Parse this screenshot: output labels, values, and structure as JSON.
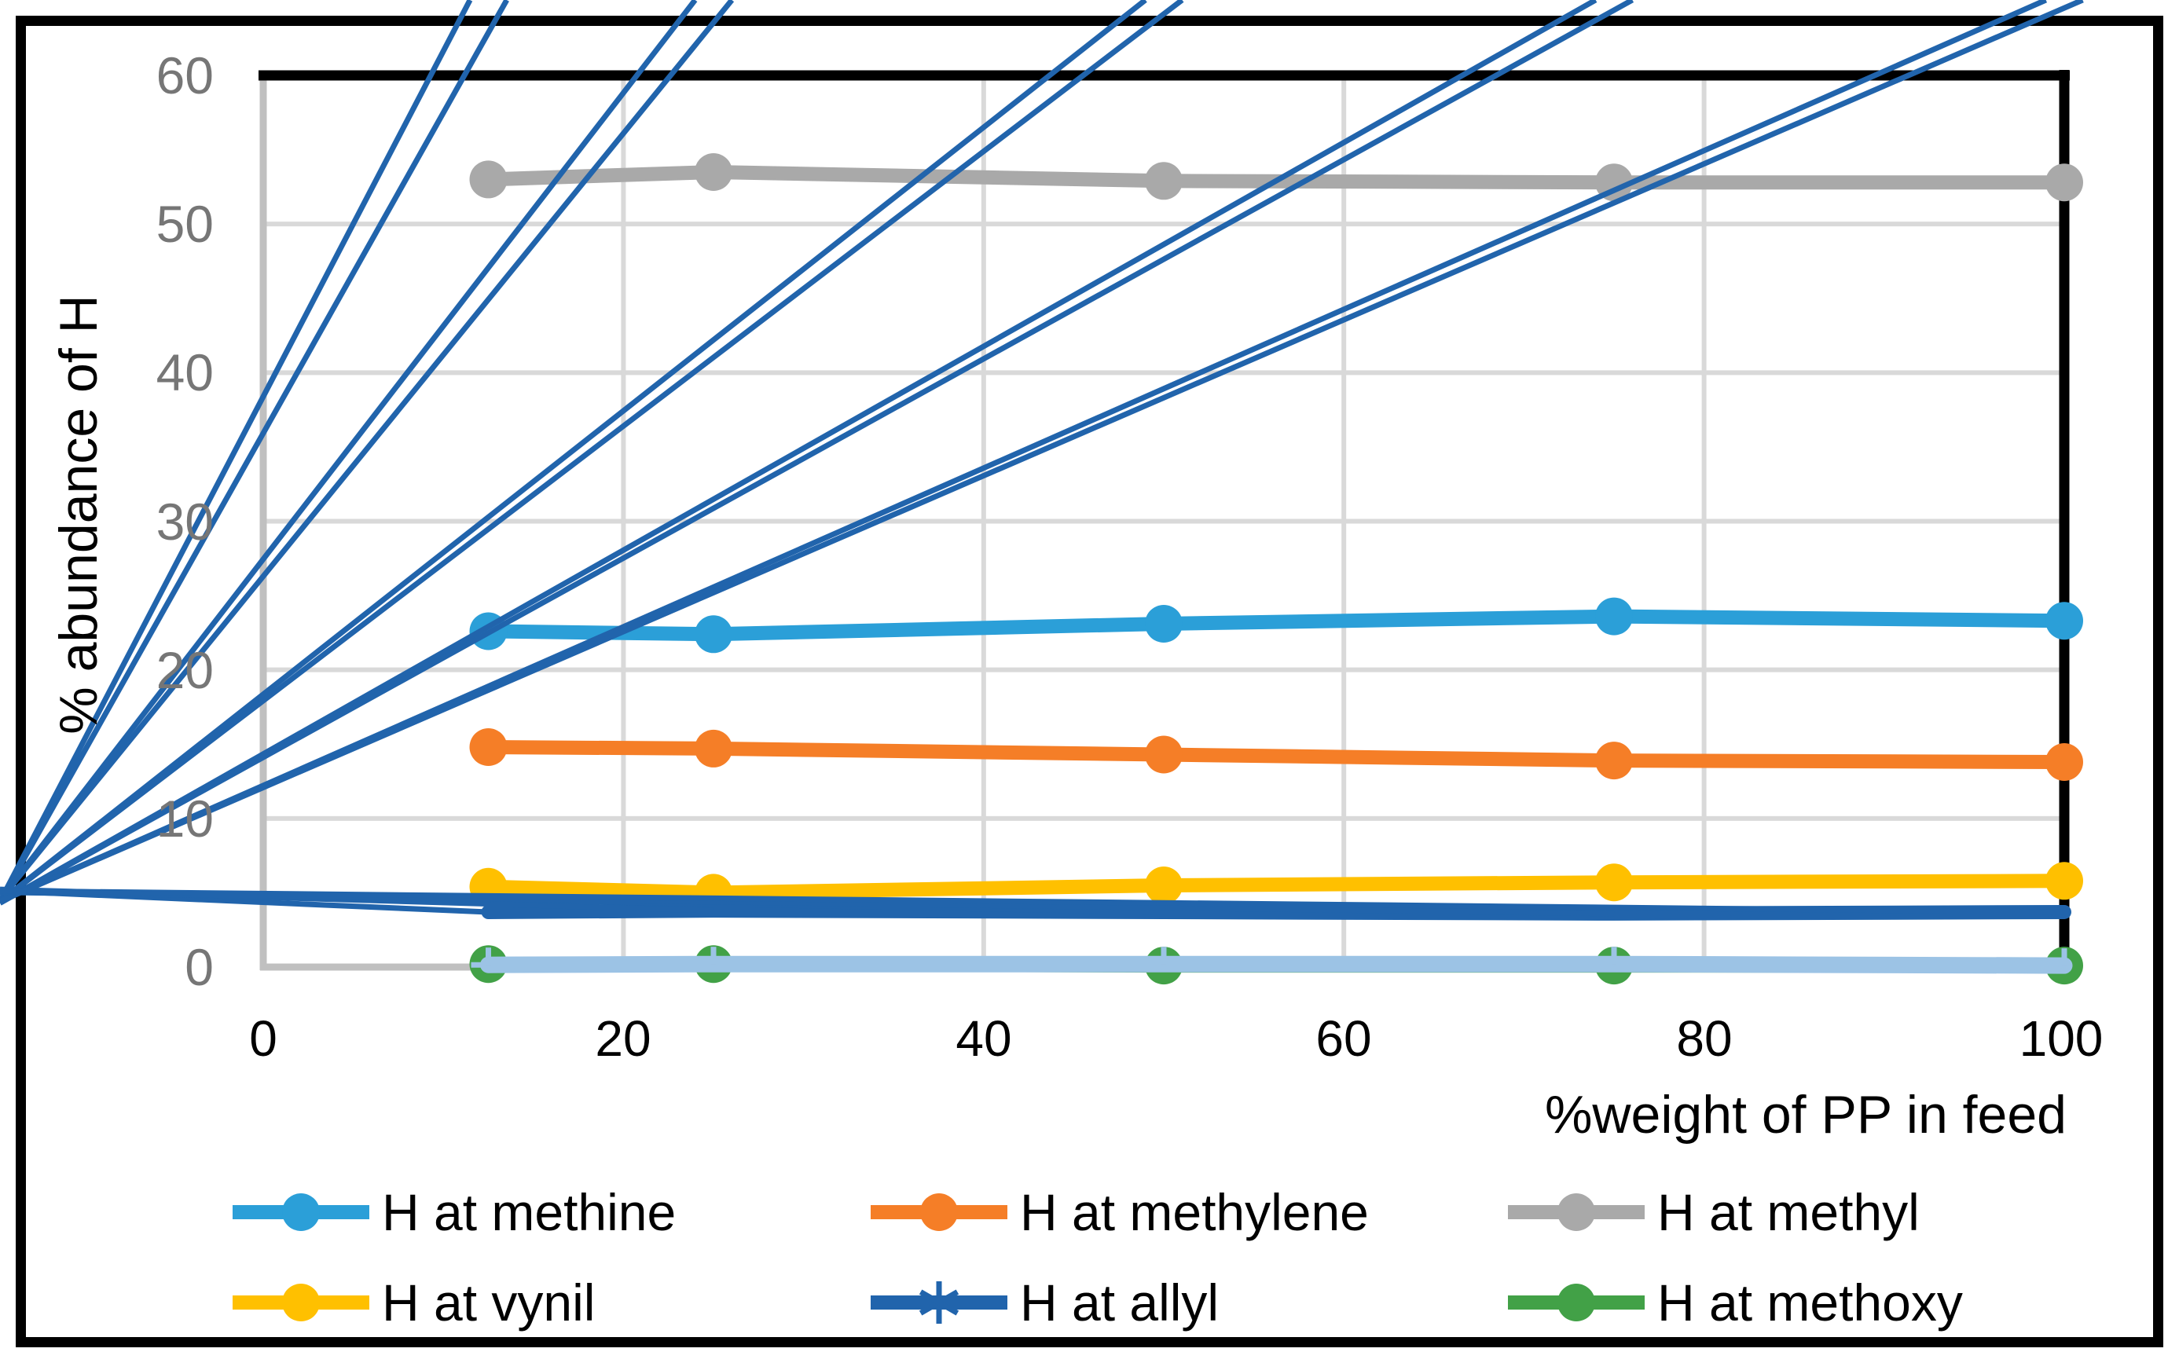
{
  "chart_data": {
    "type": "line",
    "title": "",
    "xlabel": "%weight of PP in feed",
    "ylabel": "% abundance of H",
    "xlim": [
      0,
      100
    ],
    "ylim": [
      0,
      60
    ],
    "grid": true,
    "legend_position": "bottom",
    "x_tick_labels": [
      "0",
      "20",
      "40",
      "60",
      "80",
      "100"
    ],
    "y_tick_labels": [
      "60",
      "50",
      "40",
      "30",
      "20",
      "10",
      "0"
    ],
    "x": [
      12.5,
      25,
      50,
      75,
      100
    ],
    "series": [
      {
        "name": "H at methine",
        "color": "#2B9FD8",
        "marker": "circle",
        "values": [
          22.6,
          22.4,
          23.1,
          23.6,
          23.3
        ]
      },
      {
        "name": "H at methylene",
        "color": "#F57E27",
        "marker": "circle",
        "values": [
          14.8,
          14.7,
          14.3,
          13.9,
          13.8
        ]
      },
      {
        "name": "H at methyl",
        "color": "#A9A9A9",
        "marker": "circle",
        "values": [
          53.0,
          53.5,
          52.9,
          52.8,
          52.8
        ]
      },
      {
        "name": "H at vynil",
        "color": "#FFC000",
        "marker": "circle",
        "values": [
          5.4,
          5.0,
          5.5,
          5.7,
          5.8
        ]
      },
      {
        "name": "H at allyl",
        "color": "#2164AC",
        "marker": "asterisk",
        "values": [
          3.7,
          3.8,
          3.7,
          3.6,
          3.7
        ]
      },
      {
        "name": "H at methoxy",
        "color": "#42A147",
        "marker": "circle",
        "values": [
          0.2,
          0.2,
          0.1,
          0.1,
          0.1
        ]
      },
      {
        "name": "",
        "in_legend": false,
        "color": "#9CC3E5",
        "marker": "plus",
        "values": [
          0.15,
          0.2,
          0.2,
          0.2,
          0.1
        ]
      }
    ],
    "colors": {
      "gridline": "#D9D9D9",
      "axis_line": "#C0C0C0",
      "plot_border": "#000000",
      "y_tick_text": "#767676",
      "x_tick_text": "#000000"
    }
  }
}
